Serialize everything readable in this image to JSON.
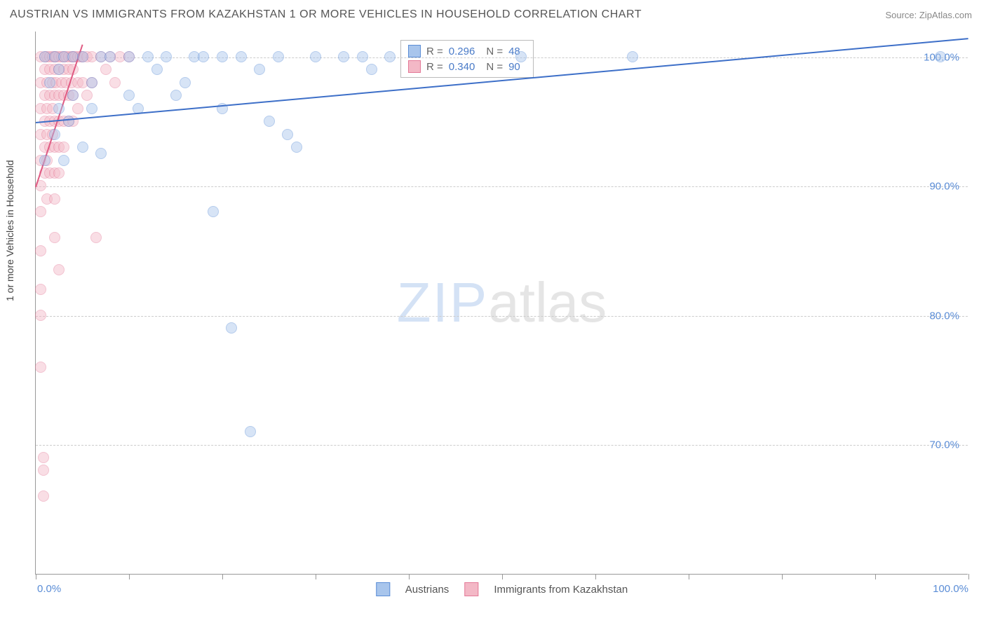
{
  "title": "AUSTRIAN VS IMMIGRANTS FROM KAZAKHSTAN 1 OR MORE VEHICLES IN HOUSEHOLD CORRELATION CHART",
  "source_label": "Source: ",
  "source_value": "ZipAtlas.com",
  "ylabel": "1 or more Vehicles in Household",
  "watermark_1": "ZIP",
  "watermark_2": "atlas",
  "chart": {
    "type": "scatter",
    "background_color": "#ffffff",
    "grid_color": "#cccccc",
    "axis_color": "#999999",
    "label_color": "#5b8dd6",
    "title_fontsize": 16,
    "label_fontsize": 14,
    "tick_fontsize": 15,
    "xlim": [
      0,
      100
    ],
    "ylim": [
      60,
      102
    ],
    "xticks": [
      0,
      10,
      20,
      30,
      40,
      50,
      60,
      70,
      80,
      90,
      100
    ],
    "xtick_labels_shown": {
      "0": "0.0%",
      "100": "100.0%"
    },
    "yticks": [
      70,
      80,
      90,
      100
    ],
    "ytick_labels": {
      "70": "70.0%",
      "80": "80.0%",
      "90": "90.0%",
      "100": "100.0%"
    },
    "marker_radius": 8,
    "marker_opacity": 0.45,
    "series": [
      {
        "name": "Austrians",
        "color_fill": "#a8c5ec",
        "color_stroke": "#5b8dd6",
        "R_label": "R = ",
        "R": "0.296",
        "N_label": "N = ",
        "N": "48",
        "trend": {
          "x1": 0,
          "y1": 95.0,
          "x2": 100,
          "y2": 101.5,
          "color": "#3d6fc8",
          "width": 2
        },
        "points": [
          [
            1,
            100
          ],
          [
            1,
            92
          ],
          [
            1.5,
            98
          ],
          [
            2,
            100
          ],
          [
            2,
            94
          ],
          [
            2.5,
            99
          ],
          [
            2.5,
            96
          ],
          [
            3,
            100
          ],
          [
            3,
            92
          ],
          [
            3.5,
            95
          ],
          [
            4,
            100
          ],
          [
            4,
            97
          ],
          [
            5,
            100
          ],
          [
            5,
            93
          ],
          [
            6,
            98
          ],
          [
            6,
            96
          ],
          [
            7,
            100
          ],
          [
            7,
            92.5
          ],
          [
            8,
            100
          ],
          [
            10,
            97
          ],
          [
            10,
            100
          ],
          [
            11,
            96
          ],
          [
            12,
            100
          ],
          [
            13,
            99
          ],
          [
            14,
            100
          ],
          [
            15,
            97
          ],
          [
            16,
            98
          ],
          [
            17,
            100
          ],
          [
            18,
            100
          ],
          [
            19,
            88
          ],
          [
            20,
            100
          ],
          [
            20,
            96
          ],
          [
            21,
            79
          ],
          [
            22,
            100
          ],
          [
            23,
            71
          ],
          [
            24,
            99
          ],
          [
            25,
            95
          ],
          [
            26,
            100
          ],
          [
            27,
            94
          ],
          [
            28,
            93
          ],
          [
            30,
            100
          ],
          [
            33,
            100
          ],
          [
            35,
            100
          ],
          [
            36,
            99
          ],
          [
            38,
            100
          ],
          [
            52,
            100
          ],
          [
            64,
            100
          ],
          [
            97,
            100
          ]
        ]
      },
      {
        "name": "Immigrants from Kazakhstan",
        "color_fill": "#f3b8c6",
        "color_stroke": "#e47a98",
        "R_label": "R = ",
        "R": "0.340",
        "N_label": "N = ",
        "N": "90",
        "trend": {
          "x1": 0,
          "y1": 90.0,
          "x2": 5,
          "y2": 101,
          "color": "#e05a82",
          "width": 2
        },
        "points": [
          [
            0.5,
            100
          ],
          [
            0.5,
            98
          ],
          [
            0.5,
            96
          ],
          [
            0.5,
            94
          ],
          [
            0.5,
            92
          ],
          [
            0.5,
            90
          ],
          [
            0.5,
            88
          ],
          [
            0.5,
            85
          ],
          [
            0.5,
            82
          ],
          [
            0.5,
            80
          ],
          [
            0.5,
            76
          ],
          [
            0.8,
            69
          ],
          [
            0.8,
            68
          ],
          [
            0.8,
            66
          ],
          [
            1,
            100
          ],
          [
            1,
            99
          ],
          [
            1,
            97
          ],
          [
            1,
            95
          ],
          [
            1,
            93
          ],
          [
            1,
            91
          ],
          [
            1.2,
            100
          ],
          [
            1.2,
            98
          ],
          [
            1.2,
            96
          ],
          [
            1.2,
            94
          ],
          [
            1.2,
            92
          ],
          [
            1.2,
            89
          ],
          [
            1.5,
            100
          ],
          [
            1.5,
            99
          ],
          [
            1.5,
            97
          ],
          [
            1.5,
            95
          ],
          [
            1.5,
            93
          ],
          [
            1.5,
            91
          ],
          [
            1.8,
            100
          ],
          [
            1.8,
            98
          ],
          [
            1.8,
            96
          ],
          [
            1.8,
            94
          ],
          [
            2,
            100
          ],
          [
            2,
            99
          ],
          [
            2,
            97
          ],
          [
            2,
            95
          ],
          [
            2,
            93
          ],
          [
            2,
            91
          ],
          [
            2,
            89
          ],
          [
            2,
            86
          ],
          [
            2.2,
            100
          ],
          [
            2.2,
            98
          ],
          [
            2.5,
            100
          ],
          [
            2.5,
            99
          ],
          [
            2.5,
            97
          ],
          [
            2.5,
            95
          ],
          [
            2.5,
            93
          ],
          [
            2.5,
            91
          ],
          [
            2.5,
            83.5
          ],
          [
            2.8,
            100
          ],
          [
            2.8,
            98
          ],
          [
            3,
            100
          ],
          [
            3,
            99
          ],
          [
            3,
            97
          ],
          [
            3,
            95
          ],
          [
            3,
            93
          ],
          [
            3.2,
            100
          ],
          [
            3.2,
            98
          ],
          [
            3.5,
            100
          ],
          [
            3.5,
            99
          ],
          [
            3.5,
            97
          ],
          [
            3.5,
            95
          ],
          [
            3.8,
            100
          ],
          [
            3.8,
            98
          ],
          [
            4,
            100
          ],
          [
            4,
            99
          ],
          [
            4,
            97
          ],
          [
            4,
            95
          ],
          [
            4.2,
            100
          ],
          [
            4.5,
            100
          ],
          [
            4.5,
            98
          ],
          [
            4.5,
            96
          ],
          [
            4.8,
            100
          ],
          [
            5,
            100
          ],
          [
            5,
            98
          ],
          [
            5.5,
            100
          ],
          [
            5.5,
            97
          ],
          [
            6,
            100
          ],
          [
            6,
            98
          ],
          [
            6.5,
            86
          ],
          [
            7,
            100
          ],
          [
            7.5,
            99
          ],
          [
            8,
            100
          ],
          [
            8.5,
            98
          ],
          [
            9,
            100
          ],
          [
            10,
            100
          ]
        ]
      }
    ]
  },
  "legend_bottom": [
    {
      "label": "Austrians",
      "fill": "#a8c5ec",
      "stroke": "#5b8dd6"
    },
    {
      "label": "Immigrants from Kazakhstan",
      "fill": "#f3b8c6",
      "stroke": "#e47a98"
    }
  ]
}
